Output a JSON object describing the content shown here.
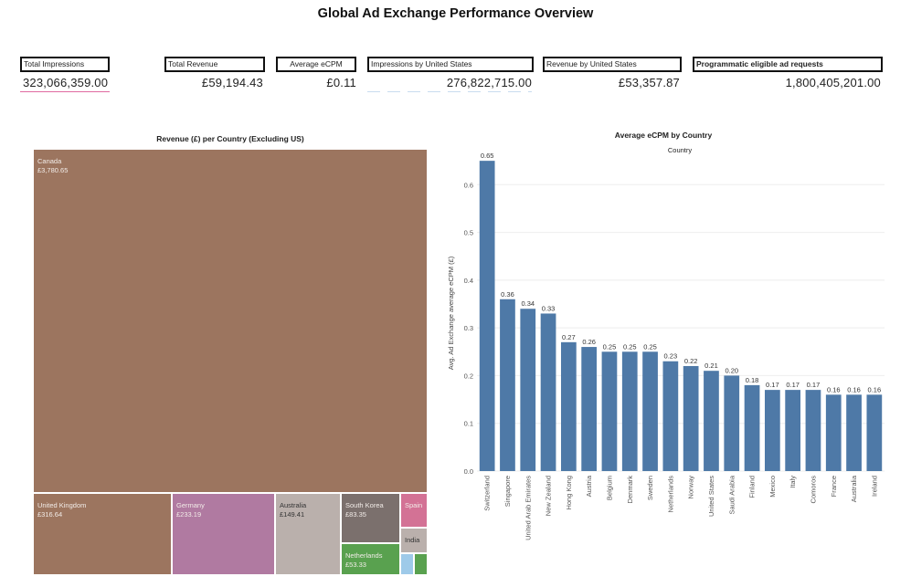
{
  "page": {
    "title": "Global Ad Exchange Performance Overview"
  },
  "kpis": [
    {
      "label": "Total Impressions",
      "value": "323,066,359.00"
    },
    {
      "label": "Total Revenue",
      "value": "£59,194.43"
    },
    {
      "label": "Average eCPM",
      "value": "£0.11"
    },
    {
      "label": "Impressions by United States",
      "value": "276,822,715.00"
    },
    {
      "label": "Revenue by United States",
      "value": "£53,357.87"
    },
    {
      "label": "Programmatic eligible ad requests",
      "value": "1,800,405,201.00"
    }
  ],
  "colors": {
    "bar": "#4e79a7",
    "treemap_brown": "#9c755f",
    "treemap_pink": "#b07aa1",
    "treemap_grey": "#bab0ac",
    "treemap_darkgrey": "#7b706d",
    "treemap_green": "#59a14f",
    "treemap_magenta": "#d37295",
    "treemap_lightblue": "#9ecae9"
  },
  "chart_data": [
    {
      "type": "treemap",
      "title": "Revenue (£) per Country (Excluding US)",
      "items": [
        {
          "name": "Canada",
          "value": 3780.65,
          "label": "£3,780.65",
          "color": "#9c755f"
        },
        {
          "name": "United Kingdom",
          "value": 316.64,
          "label": "£316.64",
          "color": "#9c755f"
        },
        {
          "name": "Germany",
          "value": 233.19,
          "label": "£233.19",
          "color": "#b07aa1"
        },
        {
          "name": "Australia",
          "value": 149.41,
          "label": "£149.41",
          "color": "#bab0ac"
        },
        {
          "name": "South Korea",
          "value": 83.35,
          "label": "£83.35",
          "color": "#7b706d"
        },
        {
          "name": "Netherlands",
          "value": 53.33,
          "label": "£53.33",
          "color": "#59a14f"
        },
        {
          "name": "Spain",
          "value": 40,
          "label": "",
          "color": "#d37295"
        },
        {
          "name": "India",
          "value": 30,
          "label": "",
          "color": "#bab0ac"
        },
        {
          "name": "",
          "value": 12,
          "label": "",
          "color": "#9ecae9"
        },
        {
          "name": "",
          "value": 12,
          "label": "",
          "color": "#59a14f"
        }
      ]
    },
    {
      "type": "bar",
      "title": "Average eCPM by Country",
      "subtitle": "Country",
      "ylabel": "Avg. Ad Exchange average eCPM (£)",
      "ylim": [
        0,
        0.7
      ],
      "yticks": [
        0.0,
        0.1,
        0.2,
        0.3,
        0.4,
        0.5,
        0.6
      ],
      "grid": true,
      "categories": [
        "Switzerland",
        "Singapore",
        "United Arab Emirates",
        "New Zealand",
        "Hong Kong",
        "Austria",
        "Belgium",
        "Denmark",
        "Sweden",
        "Netherlands",
        "Norway",
        "United States",
        "Saudi Arabia",
        "Finland",
        "Mexico",
        "Italy",
        "Comoros",
        "France",
        "Australia",
        "Ireland"
      ],
      "values": [
        0.65,
        0.36,
        0.34,
        0.33,
        0.27,
        0.26,
        0.25,
        0.25,
        0.25,
        0.23,
        0.22,
        0.21,
        0.2,
        0.18,
        0.17,
        0.17,
        0.17,
        0.16,
        0.16,
        0.16
      ]
    }
  ]
}
